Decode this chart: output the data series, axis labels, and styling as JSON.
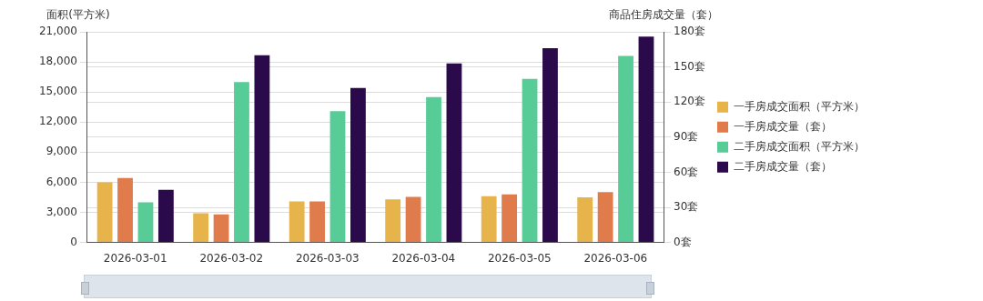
{
  "chart_data": {
    "type": "bar",
    "ylabel": "面积(平方米)",
    "y2label": "商品住房成交量（套）",
    "categories": [
      "2026-03-01",
      "2026-03-02",
      "2026-03-03",
      "2026-03-04",
      "2026-03-05",
      "2026-03-06"
    ],
    "series": [
      {
        "name": "一手房成交面积（平方米）",
        "color": "#e6b44a",
        "values": [
          6000,
          2900,
          4100,
          4300,
          4600,
          4500
        ]
      },
      {
        "name": "一手房成交量（套）",
        "color": "#e07b4c",
        "axis": "y2",
        "values": [
          55,
          24,
          35,
          39,
          41,
          43
        ]
      },
      {
        "name": "二手房成交面积（平方米）",
        "color": "#57cc97",
        "values": [
          4000,
          16000,
          13100,
          14500,
          16300,
          18600
        ]
      },
      {
        "name": "二手房成交量（套）",
        "color": "#2a0a4a",
        "axis": "y2",
        "values": [
          45,
          160,
          132,
          153,
          166,
          176
        ]
      }
    ],
    "ylim": [
      0,
      21000
    ],
    "yticks": [
      {
        "value": 0,
        "label": "0"
      },
      {
        "value": 3000,
        "label": "3,000"
      },
      {
        "value": 6000,
        "label": "6,000"
      },
      {
        "value": 9000,
        "label": "9,000"
      },
      {
        "value": 12000,
        "label": "12,000"
      },
      {
        "value": 15000,
        "label": "15,000"
      },
      {
        "value": 18000,
        "label": "18,000"
      },
      {
        "value": 21000,
        "label": "21,000"
      }
    ],
    "y2lim": [
      0,
      180
    ],
    "y2ticks": [
      {
        "value": 0,
        "label": "0套"
      },
      {
        "value": 30,
        "label": "30套"
      },
      {
        "value": 60,
        "label": "60套"
      },
      {
        "value": 90,
        "label": "90套"
      },
      {
        "value": 120,
        "label": "120套"
      },
      {
        "value": 150,
        "label": "150套"
      },
      {
        "value": 180,
        "label": "180套"
      }
    ],
    "grid": "y",
    "legend": "right"
  }
}
